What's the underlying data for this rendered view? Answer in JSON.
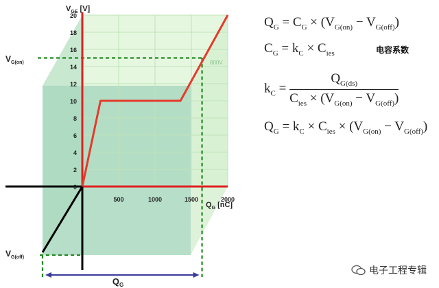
{
  "chart_data": {
    "type": "line",
    "title": "",
    "ylabel": "V_GE [V]",
    "xlabel": "Q_G [nC]",
    "xlim": [
      0,
      2000
    ],
    "ylim": [
      0,
      20
    ],
    "x_ticks": [
      "500",
      "1000",
      "1500",
      "2000"
    ],
    "y_ticks": [
      "0",
      "2",
      "4",
      "6",
      "8",
      "10",
      "12",
      "14",
      "16",
      "18",
      "20"
    ],
    "grid": true,
    "series": [
      {
        "name": "",
        "color": "#e53a2c",
        "x": [
          0,
          250,
          1350,
          2000
        ],
        "y": [
          0,
          10,
          10,
          20
        ]
      }
    ],
    "annotations": {
      "voltage_label": "800V",
      "v_on_label": "V_G(on)",
      "v_off_label": "V_G(off)",
      "qg_label": "Q_G"
    }
  },
  "equations": {
    "eq1": "Q_G = C_G × (V_G(on) − V_G(off))",
    "eq2": "C_G = k_C × C_ies",
    "eq2_note": "电容系数",
    "eq3": "k_C = Q_G(ds) / (C_ies × (V_G(on) − V_G(off)))",
    "eq4": "Q_G = k_C × C_ies × (V_G(on) − V_G(off))"
  },
  "watermark": "电子工程专辑",
  "colors": {
    "curve": "#e53a2c",
    "axis_red": "#e02020",
    "guide": "#1f8a1f",
    "fill_light": "#dff5d8",
    "fill_dark": "#a9d8bf",
    "qg_arrow": "#3a3a9a"
  }
}
